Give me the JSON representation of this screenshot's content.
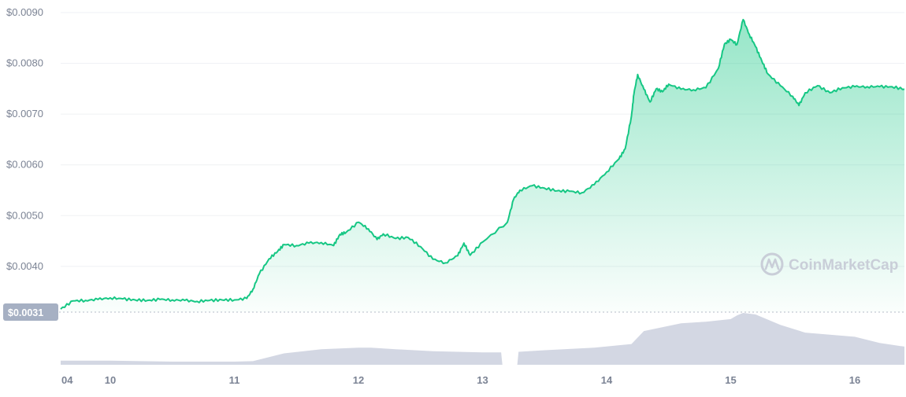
{
  "watermark": "CoinMarketCap",
  "colors": {
    "price_line": "#16c784",
    "area_top": "#16c784",
    "volume": "#d3d7e3",
    "current_badge": "#a6b0c3",
    "grid": "#eff1f4",
    "tick_text": "#7b8394"
  },
  "current_price_label": "$0.0031",
  "chart_data": {
    "type": "line",
    "title": "",
    "xlabel": "",
    "ylabel": "",
    "y_ticks": [
      "$0.0090",
      "$0.0080",
      "$0.0070",
      "$0.0060",
      "$0.0050",
      "$0.0040"
    ],
    "x_ticks": [
      "04",
      "10",
      "11",
      "12",
      "13",
      "14",
      "15",
      "16"
    ],
    "ylim": [
      0.0031,
      0.009
    ],
    "xlim": [
      9.6,
      16.4
    ],
    "grid": true,
    "legend": "none",
    "series": [
      {
        "name": "",
        "kind": "price",
        "x": [
          9.6,
          9.7,
          9.8,
          9.9,
          10.0,
          10.1,
          10.2,
          10.3,
          10.4,
          10.5,
          10.6,
          10.7,
          10.8,
          10.9,
          11.0,
          11.1,
          11.15,
          11.2,
          11.28,
          11.35,
          11.4,
          11.5,
          11.6,
          11.7,
          11.8,
          11.85,
          11.9,
          12.0,
          12.08,
          12.15,
          12.2,
          12.3,
          12.4,
          12.5,
          12.6,
          12.7,
          12.8,
          12.85,
          12.9,
          13.0,
          13.2,
          13.25,
          13.3,
          13.4,
          13.5,
          13.6,
          13.7,
          13.8,
          13.9,
          14.0,
          14.1,
          14.15,
          14.2,
          14.22,
          14.25,
          14.3,
          14.35,
          14.4,
          14.45,
          14.5,
          14.6,
          14.7,
          14.8,
          14.9,
          14.95,
          15.0,
          15.05,
          15.1,
          15.15,
          15.2,
          15.25,
          15.3,
          15.4,
          15.5,
          15.55,
          15.6,
          15.7,
          15.8,
          15.9,
          16.0,
          16.1,
          16.2,
          16.3,
          16.4
        ],
        "values": [
          0.00316,
          0.00332,
          0.00333,
          0.00335,
          0.00338,
          0.00336,
          0.00334,
          0.00333,
          0.00335,
          0.00334,
          0.00333,
          0.00331,
          0.00333,
          0.00334,
          0.00334,
          0.00337,
          0.00355,
          0.00385,
          0.00415,
          0.0043,
          0.00443,
          0.00441,
          0.00446,
          0.00447,
          0.00441,
          0.00463,
          0.00467,
          0.00487,
          0.00474,
          0.00453,
          0.00464,
          0.00455,
          0.00457,
          0.00439,
          0.00414,
          0.00407,
          0.00421,
          0.00446,
          0.00422,
          0.00448,
          0.00487,
          0.00532,
          0.0055,
          0.00559,
          0.00554,
          0.00549,
          0.00548,
          0.00545,
          0.00561,
          0.00586,
          0.00612,
          0.00632,
          0.00696,
          0.0074,
          0.00778,
          0.00749,
          0.00724,
          0.0075,
          0.00744,
          0.00759,
          0.00749,
          0.00748,
          0.00752,
          0.0079,
          0.00838,
          0.00847,
          0.00837,
          0.00886,
          0.00857,
          0.00833,
          0.00805,
          0.00779,
          0.00756,
          0.00735,
          0.00717,
          0.00742,
          0.00756,
          0.00742,
          0.00752,
          0.00754,
          0.00754,
          0.00754,
          0.00754,
          0.00749
        ]
      },
      {
        "name": "",
        "kind": "volume",
        "x": [
          9.6,
          10.0,
          10.5,
          11.0,
          11.15,
          11.4,
          11.7,
          12.0,
          12.1,
          12.3,
          12.6,
          12.8,
          13.0,
          13.15,
          13.16,
          13.28,
          13.29,
          13.5,
          13.9,
          14.2,
          14.3,
          14.6,
          14.8,
          15.0,
          15.05,
          15.1,
          15.2,
          15.4,
          15.6,
          15.8,
          16.0,
          16.2,
          16.4
        ],
        "values": [
          0.08,
          0.08,
          0.06,
          0.06,
          0.07,
          0.22,
          0.3,
          0.33,
          0.33,
          0.3,
          0.26,
          0.25,
          0.24,
          0.24,
          0.0,
          0.0,
          0.25,
          0.28,
          0.33,
          0.4,
          0.65,
          0.8,
          0.83,
          0.88,
          0.95,
          1.0,
          0.97,
          0.77,
          0.62,
          0.58,
          0.54,
          0.42,
          0.35
        ]
      }
    ]
  }
}
